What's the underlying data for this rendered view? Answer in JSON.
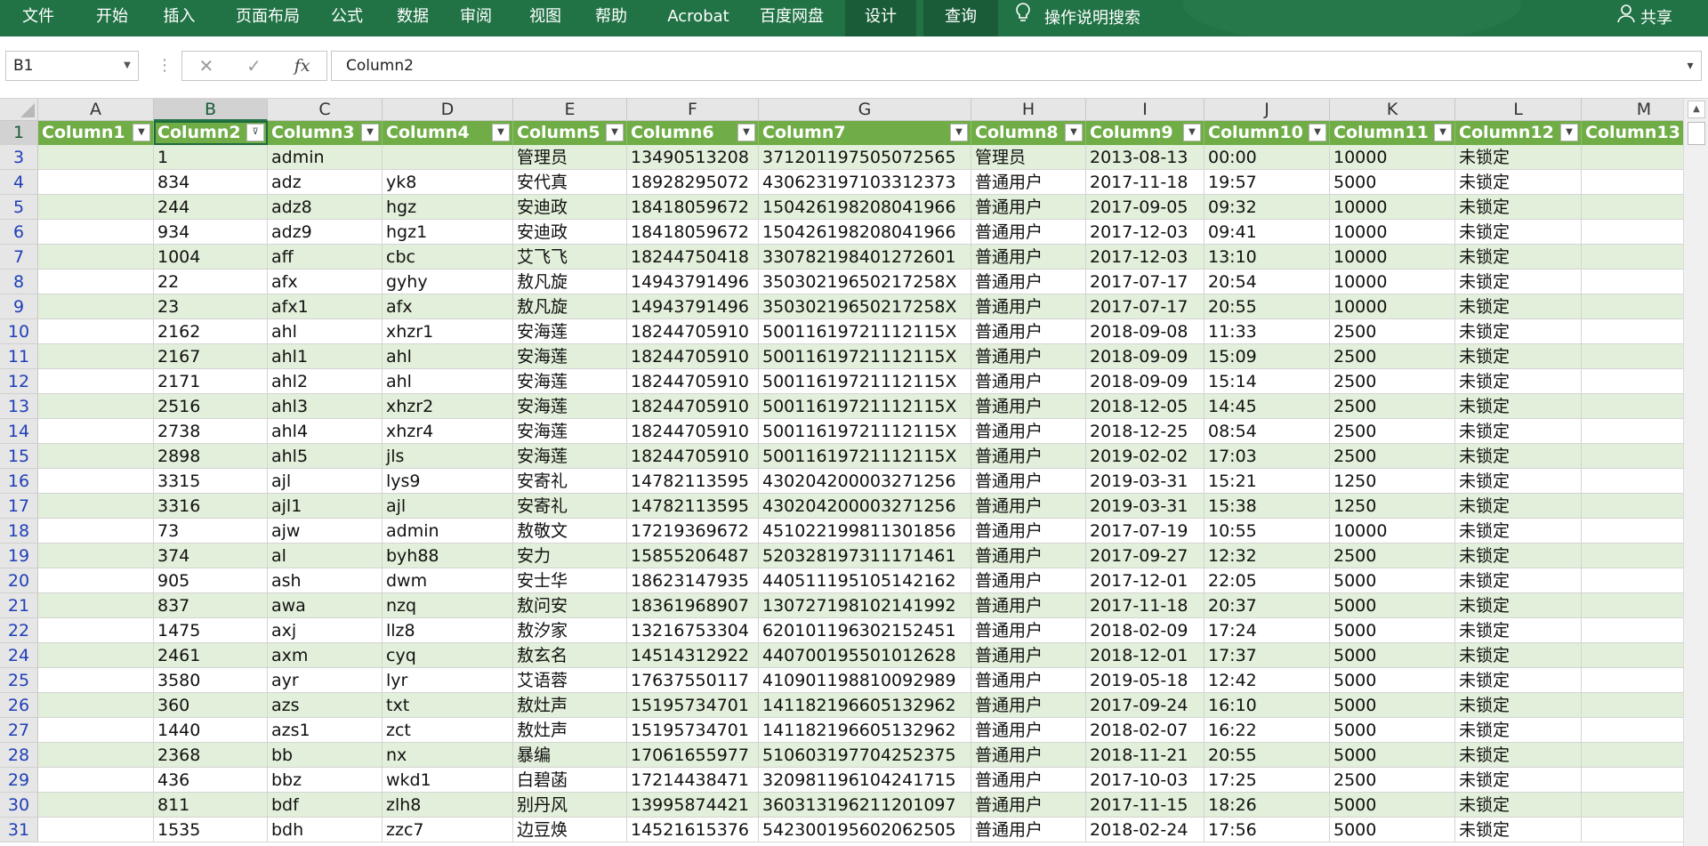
{
  "ribbon": {
    "tabs": [
      {
        "label": "文件",
        "name": "tab-file",
        "active": false
      },
      {
        "label": "开始",
        "name": "tab-home",
        "active": false
      },
      {
        "label": "插入",
        "name": "tab-insert",
        "active": false
      },
      {
        "label": "页面布局",
        "name": "tab-page-layout",
        "active": false
      },
      {
        "label": "公式",
        "name": "tab-formulas",
        "active": false
      },
      {
        "label": "数据",
        "name": "tab-data",
        "active": false
      },
      {
        "label": "审阅",
        "name": "tab-review",
        "active": false
      },
      {
        "label": "视图",
        "name": "tab-view",
        "active": false
      },
      {
        "label": "帮助",
        "name": "tab-help",
        "active": false
      },
      {
        "label": "Acrobat",
        "name": "tab-acrobat",
        "active": false
      },
      {
        "label": "百度网盘",
        "name": "tab-baidu-netdisk",
        "active": false
      },
      {
        "label": "设计",
        "name": "tab-design",
        "active": true
      },
      {
        "label": "查询",
        "name": "tab-query",
        "active": true
      }
    ],
    "search_label": "操作说明搜索",
    "share_label": "共享",
    "colors": {
      "ribbon_bg": "#217346",
      "active_tab": "#1a5c38"
    }
  },
  "formula_bar": {
    "name_box": "B1",
    "formula": "Column2",
    "cancel_glyph": "✕",
    "enter_glyph": "✓",
    "fx_glyph": "fx"
  },
  "sheet": {
    "selected_cell": "B1",
    "column_letters": [
      "A",
      "B",
      "C",
      "D",
      "E",
      "F",
      "G",
      "H",
      "I",
      "J",
      "K",
      "L",
      "M"
    ],
    "table_headers": [
      "Column1",
      "Column2",
      "Column3",
      "Column4",
      "Column5",
      "Column6",
      "Column7",
      "Column8",
      "Column9",
      "Column10",
      "Column11",
      "Column12",
      "Column13"
    ],
    "filter_active_column": "Column2",
    "colors": {
      "header_bg": "#70ad47",
      "band": "#e2efda",
      "row_number_text": "#1f3fb8"
    },
    "rows": [
      {
        "num": "3",
        "cells": [
          "",
          "1",
          "admin",
          "",
          "管理员",
          "13490513208",
          "371201197505072565",
          "管理员",
          "2013-08-13",
          "00:00",
          "10000",
          "未锁定",
          ""
        ]
      },
      {
        "num": "4",
        "cells": [
          "",
          "834",
          "adz",
          "yk8",
          "安代真",
          "18928295072",
          "430623197103312373",
          "普通用户",
          "2017-11-18",
          "19:57",
          "5000",
          "未锁定",
          ""
        ]
      },
      {
        "num": "5",
        "cells": [
          "",
          "244",
          "adz8",
          "hgz",
          "安迪政",
          "18418059672",
          "150426198208041966",
          "普通用户",
          "2017-09-05",
          "09:32",
          "10000",
          "未锁定",
          ""
        ]
      },
      {
        "num": "6",
        "cells": [
          "",
          "934",
          "adz9",
          "hgz1",
          "安迪政",
          "18418059672",
          "150426198208041966",
          "普通用户",
          "2017-12-03",
          "09:41",
          "10000",
          "未锁定",
          ""
        ]
      },
      {
        "num": "7",
        "cells": [
          "",
          "1004",
          "aff",
          "cbc",
          "艾飞飞",
          "18244750418",
          "330782198401272601",
          "普通用户",
          "2017-12-03",
          "13:10",
          "10000",
          "未锁定",
          ""
        ]
      },
      {
        "num": "8",
        "cells": [
          "",
          "22",
          "afx",
          "gyhy",
          "敖凡旋",
          "14943791496",
          "35030219650217258X",
          "普通用户",
          "2017-07-17",
          "20:54",
          "10000",
          "未锁定",
          ""
        ]
      },
      {
        "num": "9",
        "cells": [
          "",
          "23",
          "afx1",
          "afx",
          "敖凡旋",
          "14943791496",
          "35030219650217258X",
          "普通用户",
          "2017-07-17",
          "20:55",
          "10000",
          "未锁定",
          ""
        ]
      },
      {
        "num": "10",
        "cells": [
          "",
          "2162",
          "ahl",
          "xhzr1",
          "安海莲",
          "18244705910",
          "500116197211121​15X",
          "普通用户",
          "2018-09-08",
          "11:33",
          "2500",
          "未锁定",
          ""
        ]
      },
      {
        "num": "11",
        "cells": [
          "",
          "2167",
          "ahl1",
          "ahl",
          "安海莲",
          "18244705910",
          "50011619721112115X",
          "普通用户",
          "2018-09-09",
          "15:09",
          "2500",
          "未锁定",
          ""
        ]
      },
      {
        "num": "12",
        "cells": [
          "",
          "2171",
          "ahl2",
          "ahl",
          "安海莲",
          "18244705910",
          "50011619721112115X",
          "普通用户",
          "2018-09-09",
          "15:14",
          "2500",
          "未锁定",
          ""
        ]
      },
      {
        "num": "13",
        "cells": [
          "",
          "2516",
          "ahl3",
          "xhzr2",
          "安海莲",
          "18244705910",
          "50011619721112115X",
          "普通用户",
          "2018-12-05",
          "14:45",
          "2500",
          "未锁定",
          ""
        ]
      },
      {
        "num": "14",
        "cells": [
          "",
          "2738",
          "ahl4",
          "xhzr4",
          "安海莲",
          "18244705910",
          "50011619721112115X",
          "普通用户",
          "2018-12-25",
          "08:54",
          "2500",
          "未锁定",
          ""
        ]
      },
      {
        "num": "15",
        "cells": [
          "",
          "2898",
          "ahl5",
          "jls",
          "安海莲",
          "18244705910",
          "50011619721112115X",
          "普通用户",
          "2019-02-02",
          "17:03",
          "2500",
          "未锁定",
          ""
        ]
      },
      {
        "num": "16",
        "cells": [
          "",
          "3315",
          "ajl",
          "lys9",
          "安寄礼",
          "14782113595",
          "430204200003271256",
          "普通用户",
          "2019-03-31",
          "15:21",
          "1250",
          "未锁定",
          ""
        ]
      },
      {
        "num": "17",
        "cells": [
          "",
          "3316",
          "ajl1",
          "ajl",
          "安寄礼",
          "14782113595",
          "430204200003271256",
          "普通用户",
          "2019-03-31",
          "15:38",
          "1250",
          "未锁定",
          ""
        ]
      },
      {
        "num": "18",
        "cells": [
          "",
          "73",
          "ajw",
          "admin",
          "敖敬文",
          "17219369672",
          "451022199811301856",
          "普通用户",
          "2017-07-19",
          "10:55",
          "10000",
          "未锁定",
          ""
        ]
      },
      {
        "num": "19",
        "cells": [
          "",
          "374",
          "al",
          "byh88",
          "安力",
          "15855206487",
          "520328197311171461",
          "普通用户",
          "2017-09-27",
          "12:32",
          "2500",
          "未锁定",
          ""
        ]
      },
      {
        "num": "20",
        "cells": [
          "",
          "905",
          "ash",
          "dwm",
          "安士华",
          "18623147935",
          "440511195105142162",
          "普通用户",
          "2017-12-01",
          "22:05",
          "5000",
          "未锁定",
          ""
        ]
      },
      {
        "num": "21",
        "cells": [
          "",
          "837",
          "awa",
          "nzq",
          "敖问安",
          "18361968907",
          "130727198102141992",
          "普通用户",
          "2017-11-18",
          "20:37",
          "5000",
          "未锁定",
          ""
        ]
      },
      {
        "num": "22",
        "cells": [
          "",
          "1475",
          "axj",
          "llz8",
          "敖汐家",
          "13216753304",
          "620101196302152451",
          "普通用户",
          "2018-02-09",
          "17:24",
          "5000",
          "未锁定",
          ""
        ]
      },
      {
        "num": "24",
        "cells": [
          "",
          "2461",
          "axm",
          "cyq",
          "敖玄名",
          "14514312922",
          "440700195501012628",
          "普通用户",
          "2018-12-01",
          "17:37",
          "5000",
          "未锁定",
          ""
        ]
      },
      {
        "num": "25",
        "cells": [
          "",
          "3580",
          "ayr",
          "lyr",
          "艾语蓉",
          "17637550117",
          "410901198810092989",
          "普通用户",
          "2019-05-18",
          "12:42",
          "5000",
          "未锁定",
          ""
        ]
      },
      {
        "num": "26",
        "cells": [
          "",
          "360",
          "azs",
          "txt",
          "敖灶声",
          "15195734701",
          "141182196605132962",
          "普通用户",
          "2017-09-24",
          "16:10",
          "5000",
          "未锁定",
          ""
        ]
      },
      {
        "num": "27",
        "cells": [
          "",
          "1440",
          "azs1",
          "zct",
          "敖灶声",
          "15195734701",
          "141182196605132962",
          "普通用户",
          "2018-02-07",
          "16:22",
          "5000",
          "未锁定",
          ""
        ]
      },
      {
        "num": "28",
        "cells": [
          "",
          "2368",
          "bb",
          "nx",
          "暴编",
          "17061655977",
          "510603197704252375",
          "普通用户",
          "2018-11-21",
          "20:55",
          "5000",
          "未锁定",
          ""
        ]
      },
      {
        "num": "29",
        "cells": [
          "",
          "436",
          "bbz",
          "wkd1",
          "白碧菡",
          "17214438471",
          "320981196104241715",
          "普通用户",
          "2017-10-03",
          "17:25",
          "2500",
          "未锁定",
          ""
        ]
      },
      {
        "num": "30",
        "cells": [
          "",
          "811",
          "bdf",
          "zlh8",
          "别丹风",
          "13995874421",
          "360313196211201097",
          "普通用户",
          "2017-11-15",
          "18:26",
          "5000",
          "未锁定",
          ""
        ]
      },
      {
        "num": "31",
        "cells": [
          "",
          "1535",
          "bdh",
          "zzc7",
          "边豆焕",
          "14521615376",
          "542300195602062505",
          "普通用户",
          "2018-02-24",
          "17:56",
          "5000",
          "未锁定",
          ""
        ]
      }
    ]
  }
}
